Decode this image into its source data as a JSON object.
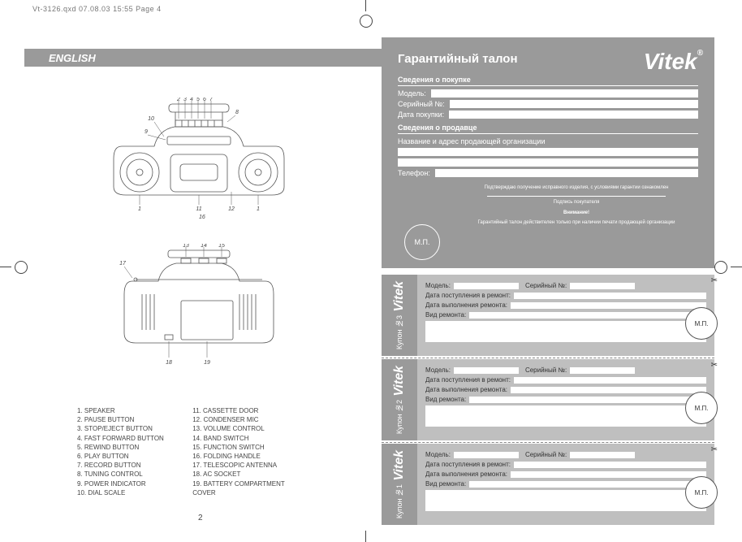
{
  "meta": {
    "header_text": "Vt-3126.qxd  07.08.03  15:55  Page 4",
    "page_number": "2"
  },
  "english_bar": {
    "label": "ENGLISH"
  },
  "diagrams": {
    "front_labels": [
      "1",
      "2",
      "3",
      "4",
      "5",
      "6",
      "7",
      "8",
      "9",
      "10",
      "11",
      "12",
      "16"
    ],
    "back_labels": [
      "13",
      "14",
      "15",
      "17",
      "18",
      "19"
    ]
  },
  "parts": {
    "col1": [
      "1.  SPEAKER",
      "2.  PAUSE BUTTON",
      "3.  STOP/EJECT BUTTON",
      "4.  FAST FORWARD BUTTON",
      "5.  REWIND BUTTON",
      "6.  PLAY BUTTON",
      "7.  RECORD BUTTON",
      "8.  TUNING CONTROL",
      "9.  POWER INDICATOR",
      "10. DIAL SCALE"
    ],
    "col2": [
      "11. CASSETTE DOOR",
      "12. CONDENSER MIC",
      "13. VOLUME CONTROL",
      "14. BAND SWITCH",
      "15. FUNCTION SWITCH",
      "16. FOLDING HANDLE",
      "17. TELESCOPIC ANTENNA",
      "18. AC SOCKET",
      "19. BATTERY COMPARTMENT",
      "      COVER"
    ]
  },
  "warranty": {
    "title": "Гарантийный талон",
    "brand": "Vitek",
    "section_purchase": "Сведения о покупке",
    "model": "Модель:",
    "serial": "Серийный №:",
    "purchase_date": "Дата покупки:",
    "section_seller": "Сведения о продавце",
    "seller_name": "Название и адрес продающей организации",
    "phone": "Телефон:",
    "confirm": "Подтверждаю получение исправного изделия, с условиями гарантии ознакомлен",
    "buyer_sig": "Подпись покупателя",
    "attention": "Внимание!",
    "attention_text": "Гарантийный талон действителен только при наличии печати продающей организации",
    "stamp": "М.П."
  },
  "coupon": {
    "brand": "Vitek",
    "c1": "Купон №1",
    "c2": "Купон №2",
    "c3": "Купон №3",
    "model": "Модель:",
    "serial": "Серийный №:",
    "date_in": "Дата поступления в ремонт:",
    "date_done": "Дата выполнения ремонта:",
    "repair_kind": "Вид ремонта:",
    "stamp": "М.П."
  },
  "colors": {
    "gray_panel": "#9a9a9a",
    "gray_light": "#bfbfbf",
    "text": "#444444"
  }
}
